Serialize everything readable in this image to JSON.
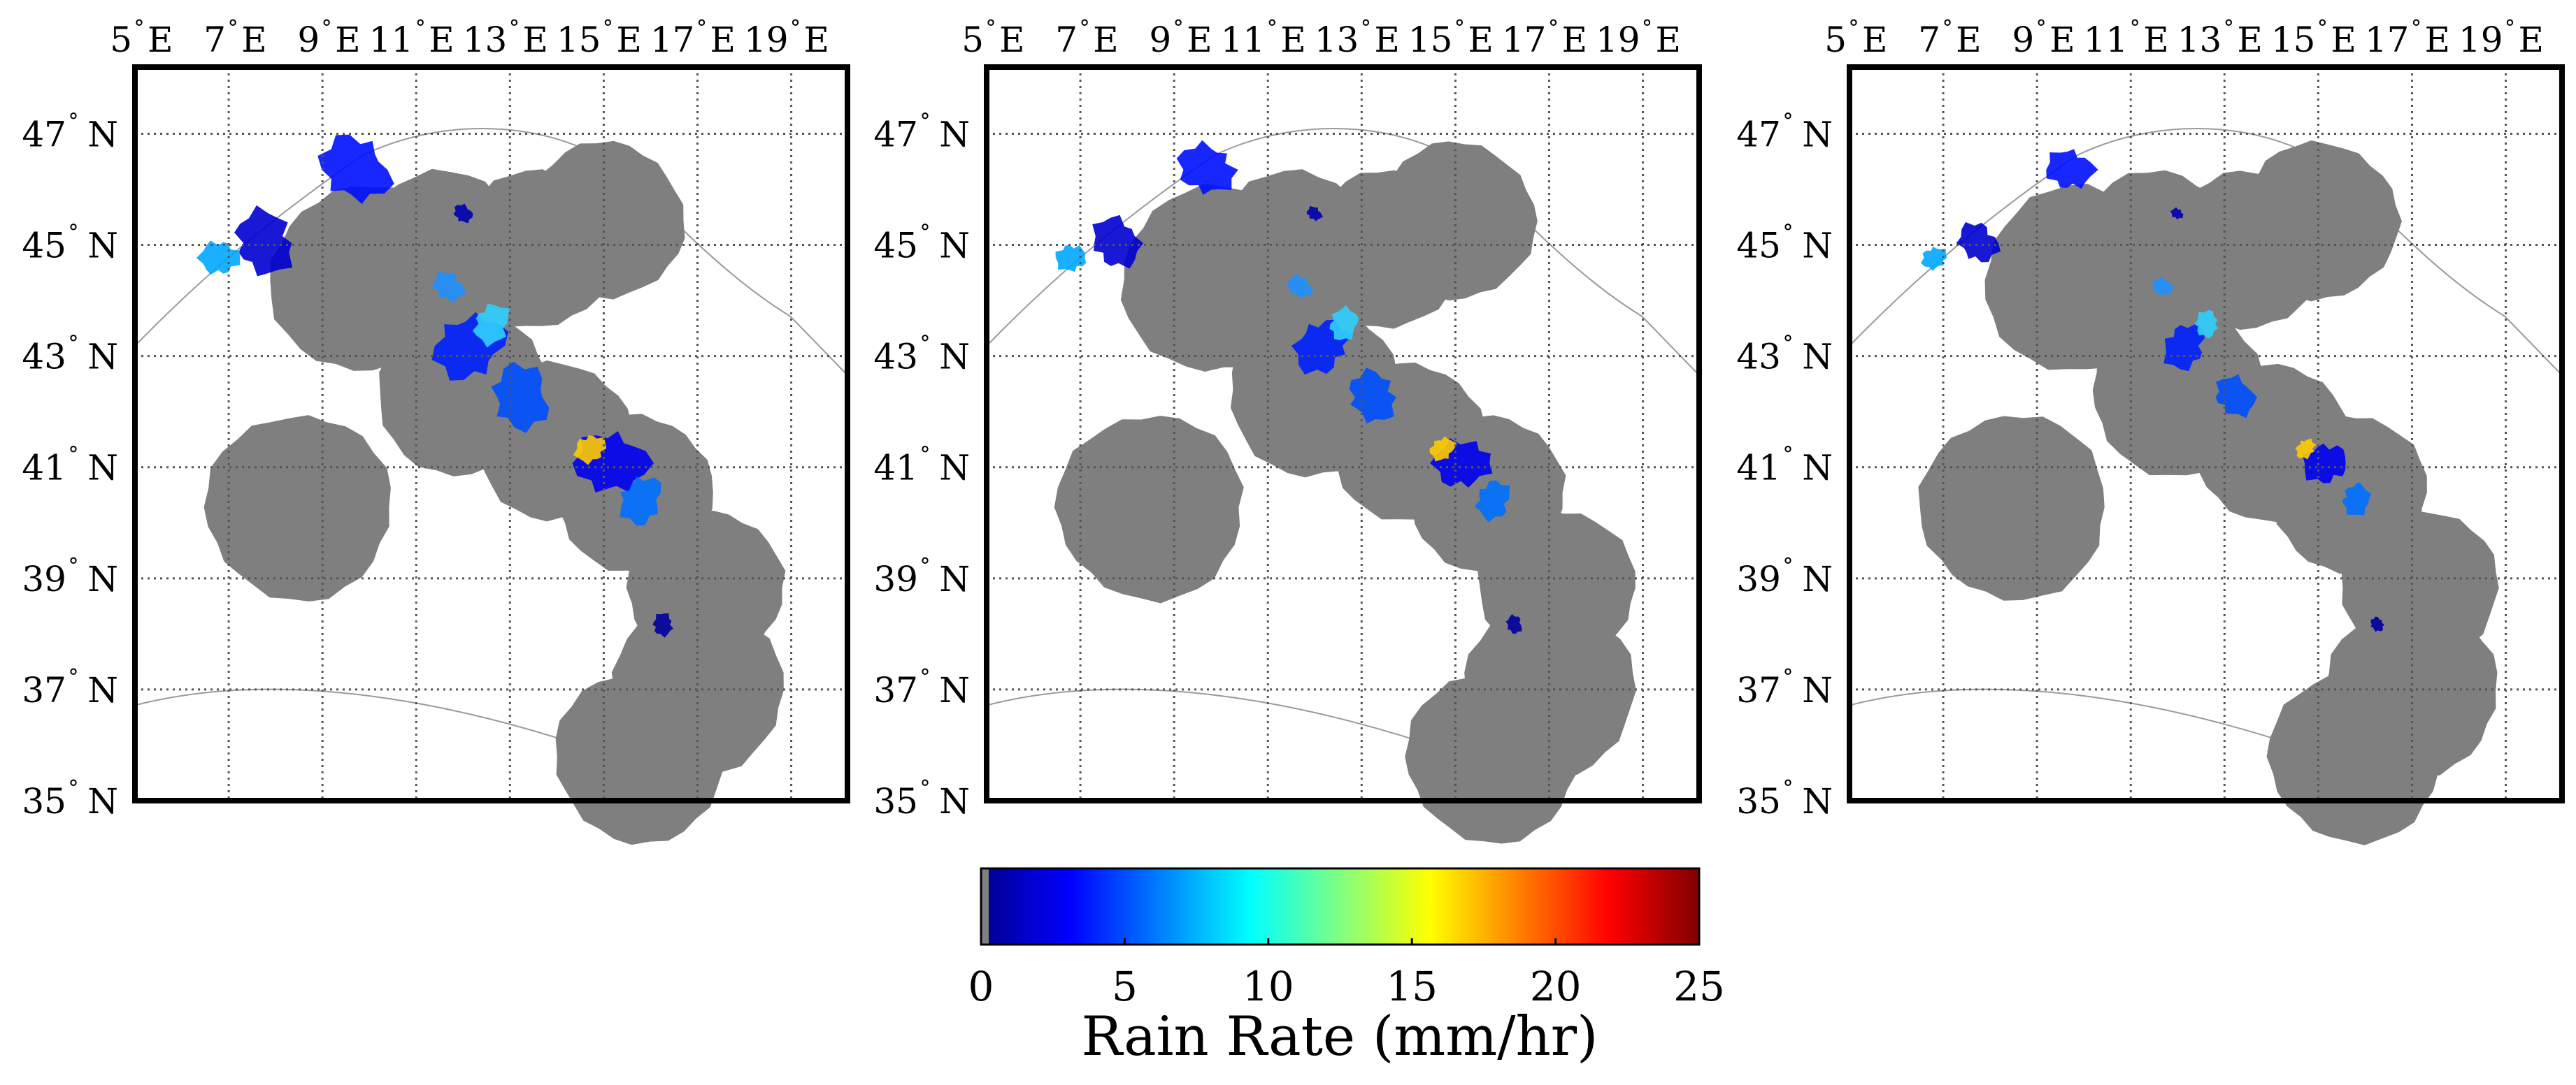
{
  "maps": {
    "lon_ticks": [
      {
        "deg": "5",
        "hemi": "E"
      },
      {
        "deg": "7",
        "hemi": "E"
      },
      {
        "deg": "9",
        "hemi": "E"
      },
      {
        "deg": "11",
        "hemi": "E"
      },
      {
        "deg": "13",
        "hemi": "E"
      },
      {
        "deg": "15",
        "hemi": "E"
      },
      {
        "deg": "17",
        "hemi": "E"
      },
      {
        "deg": "19",
        "hemi": "E"
      }
    ],
    "lat_ticks": [
      {
        "deg": "47",
        "hemi": "N"
      },
      {
        "deg": "45",
        "hemi": "N"
      },
      {
        "deg": "43",
        "hemi": "N"
      },
      {
        "deg": "41",
        "hemi": "N"
      },
      {
        "deg": "39",
        "hemi": "N"
      },
      {
        "deg": "37",
        "hemi": "N"
      },
      {
        "deg": "35",
        "hemi": "N"
      }
    ],
    "lon_range": [
      5,
      20.2
    ],
    "lat_range": [
      35,
      48.2
    ],
    "panel_count": 3
  },
  "colorbar": {
    "ticks": [
      "0",
      "5",
      "10",
      "15",
      "20",
      "25"
    ],
    "range": [
      0,
      25
    ],
    "label": "Rain Rate (mm/hr)",
    "colormap": "jet",
    "no_data_color": "#808080"
  },
  "colors": {
    "coverage_mask": "#7f7f7f",
    "coastline": "#9a9a9a",
    "frame": "#000000",
    "grid": "#555555"
  }
}
